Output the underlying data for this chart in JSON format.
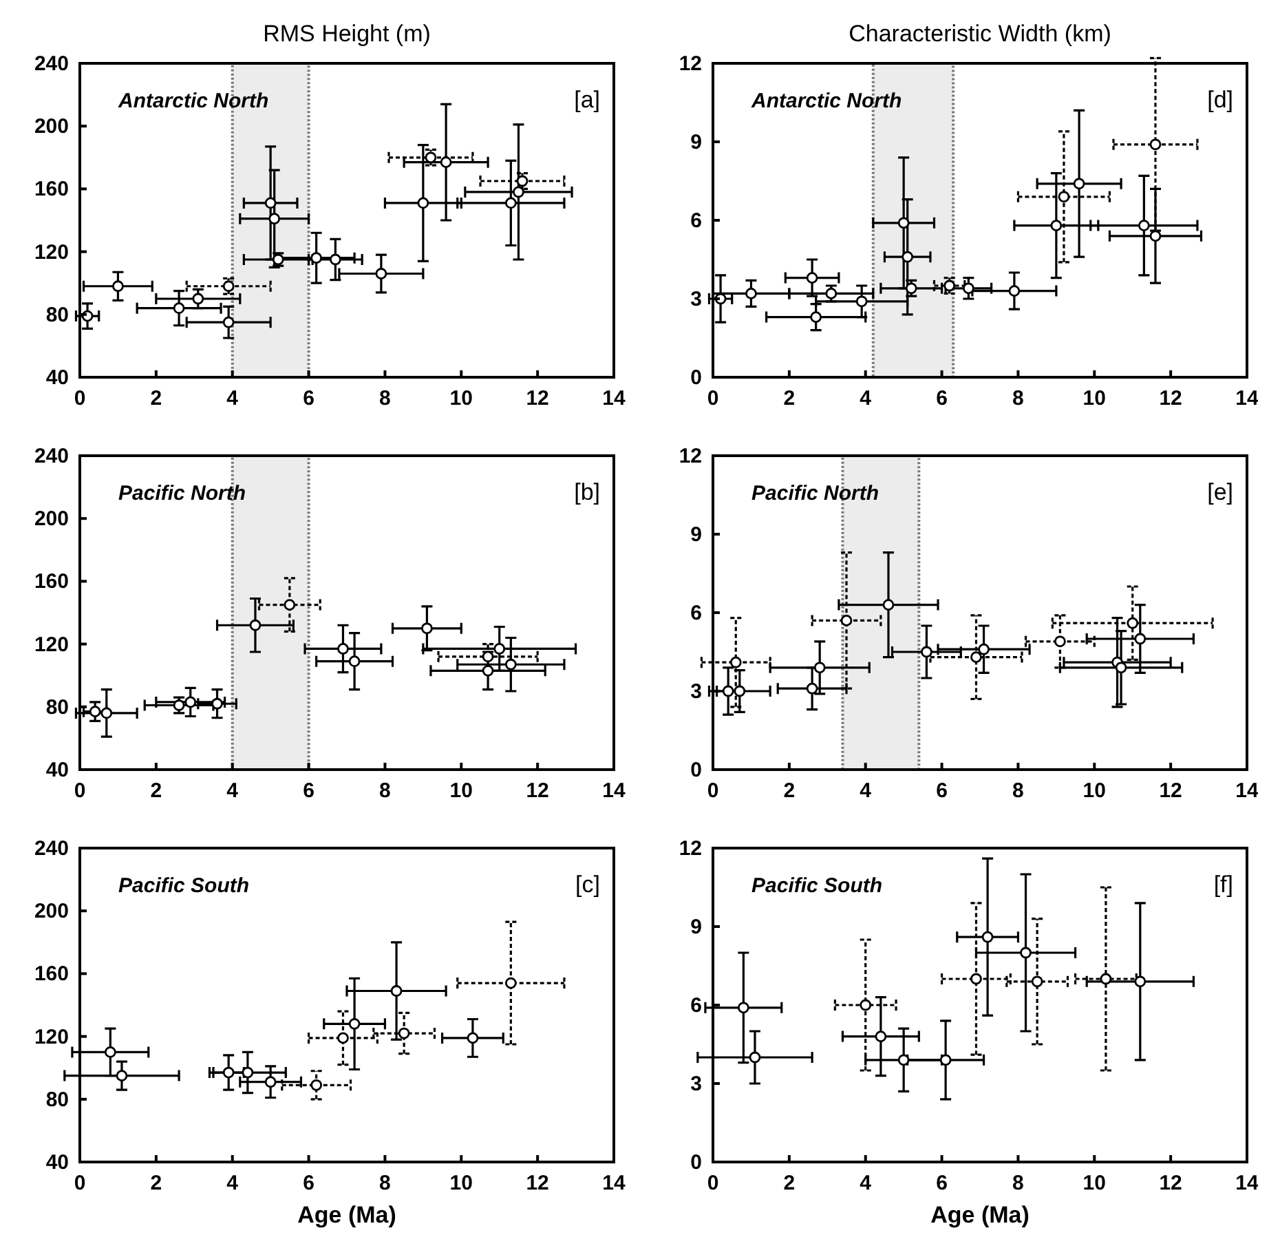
{
  "chart_data": [
    {
      "type": "scatter",
      "title": "RMS Height (m)",
      "annotations": [
        "Antarctic North",
        "[a]"
      ],
      "xlim": [
        0,
        14
      ],
      "xticks": [
        0,
        2,
        4,
        6,
        8,
        10,
        12,
        14
      ],
      "ylim": [
        40,
        240
      ],
      "yticks": [
        40,
        80,
        120,
        160,
        200,
        240
      ],
      "grid": false,
      "marker": "circle",
      "bands": [
        {
          "axis": "x",
          "from": 4,
          "to": 6
        }
      ],
      "series": [
        {
          "color": "#000000",
          "line_style": "solid",
          "x": [
            0.2,
            1.0,
            2.6,
            3.1,
            3.9,
            5.0,
            5.1,
            5.2,
            6.2,
            6.7,
            7.9,
            9.0,
            9.6,
            11.3,
            11.5
          ],
          "values": [
            79,
            98,
            84,
            90,
            75,
            151,
            141,
            115,
            116,
            115,
            106,
            151,
            177,
            151,
            158
          ],
          "xerrors": [
            0.3,
            0.9,
            1.1,
            1.1,
            1.1,
            0.7,
            0.9,
            0.9,
            1.0,
            0.7,
            1.1,
            1.0,
            1.1,
            1.4,
            1.4
          ],
          "errors": [
            8,
            9,
            11,
            6,
            10,
            36,
            31,
            4,
            16,
            13,
            12,
            37,
            37,
            27,
            43
          ]
        },
        {
          "color": "#000000",
          "line_style": "dashed",
          "x": [
            3.9,
            9.2,
            11.6
          ],
          "values": [
            98,
            180,
            165
          ],
          "xerrors": [
            1.1,
            1.1,
            1.1
          ],
          "errors": [
            5,
            5,
            5
          ]
        }
      ]
    },
    {
      "type": "scatter",
      "title": "Characteristic Width (km)",
      "annotations": [
        "Antarctic North",
        "[d]"
      ],
      "xlim": [
        0,
        14
      ],
      "xticks": [
        0,
        2,
        4,
        6,
        8,
        10,
        12,
        14
      ],
      "ylim": [
        0,
        12
      ],
      "yticks": [
        0,
        3,
        6,
        9,
        12
      ],
      "grid": false,
      "marker": "circle",
      "bands": [
        {
          "axis": "x",
          "from": 4.2,
          "to": 6.3
        }
      ],
      "series": [
        {
          "color": "#000000",
          "line_style": "solid",
          "x": [
            0.2,
            1.0,
            2.6,
            2.7,
            3.1,
            3.9,
            5.0,
            5.1,
            5.2,
            6.7,
            7.9,
            9.0,
            9.6,
            11.3,
            11.6
          ],
          "values": [
            3.0,
            3.2,
            3.8,
            2.3,
            3.2,
            2.9,
            5.9,
            4.6,
            3.4,
            3.4,
            3.3,
            5.8,
            7.4,
            5.8,
            5.4
          ],
          "xerrors": [
            0.3,
            1.0,
            0.7,
            1.3,
            1.1,
            1.2,
            0.8,
            0.6,
            0.8,
            0.6,
            1.1,
            1.1,
            1.1,
            1.4,
            1.2
          ],
          "errors": [
            0.9,
            0.5,
            0.7,
            0.5,
            0.3,
            0.6,
            2.5,
            2.2,
            0.3,
            0.4,
            0.7,
            2.0,
            2.8,
            1.9,
            1.8
          ]
        },
        {
          "color": "#000000",
          "line_style": "dashed",
          "x": [
            6.2,
            9.2,
            11.6
          ],
          "values": [
            3.5,
            6.9,
            8.9
          ],
          "xerrors": [
            0.4,
            1.2,
            1.1
          ],
          "errors": [
            0.3,
            2.5,
            3.3
          ]
        }
      ]
    },
    {
      "type": "scatter",
      "annotations": [
        "Pacific North",
        "[b]"
      ],
      "xlim": [
        0,
        14
      ],
      "xticks": [
        0,
        2,
        4,
        6,
        8,
        10,
        12,
        14
      ],
      "ylim": [
        40,
        240
      ],
      "yticks": [
        40,
        80,
        120,
        160,
        200,
        240
      ],
      "grid": false,
      "marker": "circle",
      "bands": [
        {
          "axis": "x",
          "from": 4,
          "to": 6
        }
      ],
      "series": [
        {
          "color": "#000000",
          "line_style": "solid",
          "x": [
            0.4,
            0.7,
            2.6,
            2.9,
            3.6,
            4.6,
            6.9,
            7.2,
            9.1,
            10.7,
            11.0,
            11.3
          ],
          "values": [
            77,
            76,
            81,
            83,
            82,
            132,
            117,
            109,
            130,
            103,
            117,
            107
          ],
          "xerrors": [
            0.3,
            0.8,
            0.9,
            0.9,
            0.5,
            1.0,
            1.0,
            1.0,
            0.9,
            1.5,
            2.0,
            1.4
          ],
          "errors": [
            6,
            15,
            5,
            9,
            9,
            17,
            15,
            18,
            14,
            12,
            14,
            17
          ]
        },
        {
          "color": "#000000",
          "line_style": "dashed",
          "x": [
            5.5,
            10.7
          ],
          "values": [
            145,
            112
          ],
          "xerrors": [
            0.8,
            1.3
          ],
          "errors": [
            17,
            8
          ]
        }
      ]
    },
    {
      "type": "scatter",
      "annotations": [
        "Pacific North",
        "[e]"
      ],
      "xlim": [
        0,
        14
      ],
      "xticks": [
        0,
        2,
        4,
        6,
        8,
        10,
        12,
        14
      ],
      "ylim": [
        0,
        12
      ],
      "yticks": [
        0,
        3,
        6,
        9,
        12
      ],
      "grid": false,
      "marker": "circle",
      "bands": [
        {
          "axis": "x",
          "from": 3.4,
          "to": 5.4
        }
      ],
      "series": [
        {
          "color": "#000000",
          "line_style": "solid",
          "x": [
            0.4,
            0.7,
            2.6,
            2.8,
            4.6,
            5.6,
            7.1,
            10.6,
            10.7,
            11.2
          ],
          "values": [
            3.0,
            3.0,
            3.1,
            3.9,
            6.3,
            4.5,
            4.6,
            4.1,
            3.9,
            5.0
          ],
          "xerrors": [
            0.3,
            0.8,
            0.9,
            1.3,
            1.3,
            0.9,
            1.2,
            1.4,
            1.6,
            1.4
          ],
          "errors": [
            0.9,
            0.8,
            0.8,
            1.0,
            2.0,
            1.0,
            0.9,
            1.7,
            1.4,
            1.3
          ]
        },
        {
          "color": "#000000",
          "line_style": "dashed",
          "x": [
            0.6,
            3.5,
            6.9,
            9.1,
            11.0
          ],
          "values": [
            4.1,
            5.7,
            4.3,
            4.9,
            5.6
          ],
          "xerrors": [
            0.9,
            0.9,
            1.2,
            0.9,
            2.1
          ],
          "errors": [
            1.7,
            2.6,
            1.6,
            1.0,
            1.4
          ]
        }
      ]
    },
    {
      "type": "scatter",
      "xlabel": "Age (Ma)",
      "annotations": [
        "Pacific South",
        "[c]"
      ],
      "xlim": [
        0,
        14
      ],
      "xticks": [
        0,
        2,
        4,
        6,
        8,
        10,
        12,
        14
      ],
      "ylim": [
        40,
        240
      ],
      "yticks": [
        40,
        80,
        120,
        160,
        200,
        240
      ],
      "grid": false,
      "marker": "circle",
      "series": [
        {
          "color": "#000000",
          "line_style": "solid",
          "x": [
            0.8,
            1.1,
            3.9,
            4.4,
            5.0,
            7.2,
            8.3,
            10.3
          ],
          "values": [
            110,
            95,
            97,
            97,
            91,
            128,
            149,
            119
          ],
          "xerrors": [
            1.0,
            1.5,
            0.4,
            1.0,
            0.8,
            0.8,
            1.3,
            0.8
          ],
          "errors": [
            15,
            9,
            11,
            13,
            10,
            29,
            31,
            12
          ]
        },
        {
          "color": "#000000",
          "line_style": "dashed",
          "x": [
            6.2,
            6.9,
            8.5,
            11.3
          ],
          "values": [
            89,
            119,
            122,
            154
          ],
          "xerrors": [
            0.9,
            0.9,
            0.8,
            1.4
          ],
          "errors": [
            9,
            17,
            13,
            39
          ]
        }
      ]
    },
    {
      "type": "scatter",
      "xlabel": "Age (Ma)",
      "annotations": [
        "Pacific South",
        "[f]"
      ],
      "xlim": [
        0,
        14
      ],
      "xticks": [
        0,
        2,
        4,
        6,
        8,
        10,
        12,
        14
      ],
      "ylim": [
        0,
        12
      ],
      "yticks": [
        0,
        3,
        6,
        9,
        12
      ],
      "grid": false,
      "marker": "circle",
      "series": [
        {
          "color": "#000000",
          "line_style": "solid",
          "x": [
            0.8,
            1.1,
            4.4,
            5.0,
            6.1,
            7.2,
            8.2,
            11.2
          ],
          "values": [
            5.9,
            4.0,
            4.8,
            3.9,
            3.9,
            8.6,
            8.0,
            6.9
          ],
          "xerrors": [
            1.0,
            1.5,
            1.0,
            1.0,
            1.0,
            0.8,
            1.3,
            1.4
          ],
          "errors": [
            2.1,
            1.0,
            1.5,
            1.2,
            1.5,
            3.0,
            3.0,
            3.0
          ]
        },
        {
          "color": "#000000",
          "line_style": "dashed",
          "x": [
            4.0,
            6.9,
            8.5,
            10.3
          ],
          "values": [
            6.0,
            7.0,
            6.9,
            7.0
          ],
          "xerrors": [
            0.8,
            0.9,
            0.8,
            0.8
          ],
          "errors": [
            2.5,
            2.9,
            2.4,
            3.5
          ]
        }
      ]
    }
  ]
}
